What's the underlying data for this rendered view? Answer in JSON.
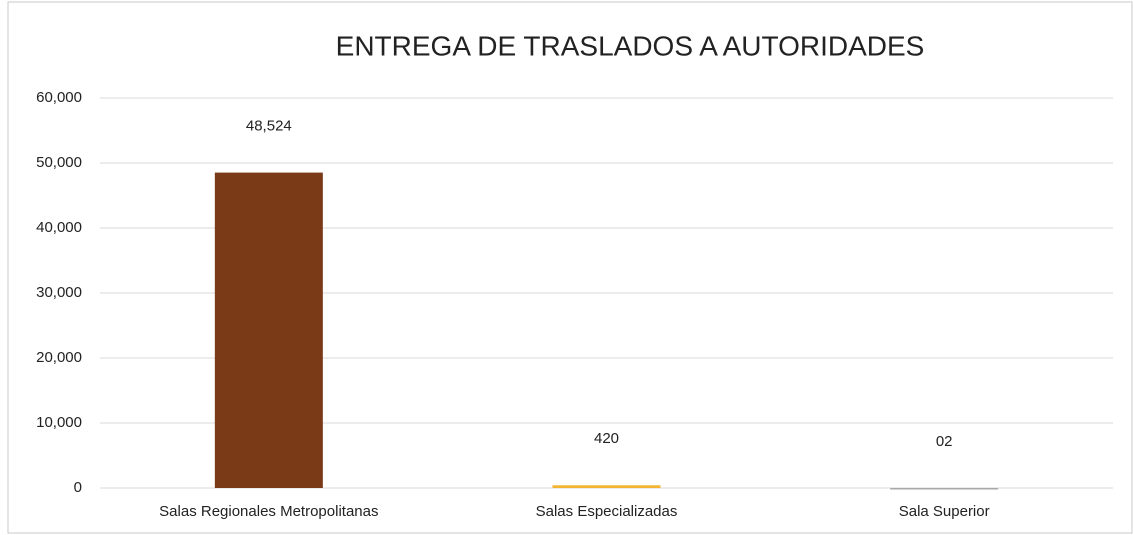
{
  "chart_data": {
    "type": "bar",
    "title": "ENTREGA DE TRASLADOS A AUTORIDADES",
    "categories": [
      "Salas Regionales Metropolitanas",
      "Salas Especializadas",
      "Sala Superior"
    ],
    "values": [
      48524,
      420,
      2
    ],
    "value_labels": [
      "48,524",
      "420",
      "02"
    ],
    "colors": [
      "#7a3a17",
      "#f2b431",
      "#a8a8a8"
    ],
    "ylim": [
      0,
      60000
    ],
    "yticks": [
      0,
      {
        "value": 10000,
        "label": "10,000"
      },
      {
        "value": 20000,
        "label": "20,000"
      },
      {
        "value": 30000,
        "label": "30,000"
      },
      {
        "value": 40000,
        "label": "40,000"
      },
      {
        "value": 50000,
        "label": "50,000"
      },
      {
        "value": 60000,
        "label": "60,000"
      }
    ],
    "grid": true
  }
}
